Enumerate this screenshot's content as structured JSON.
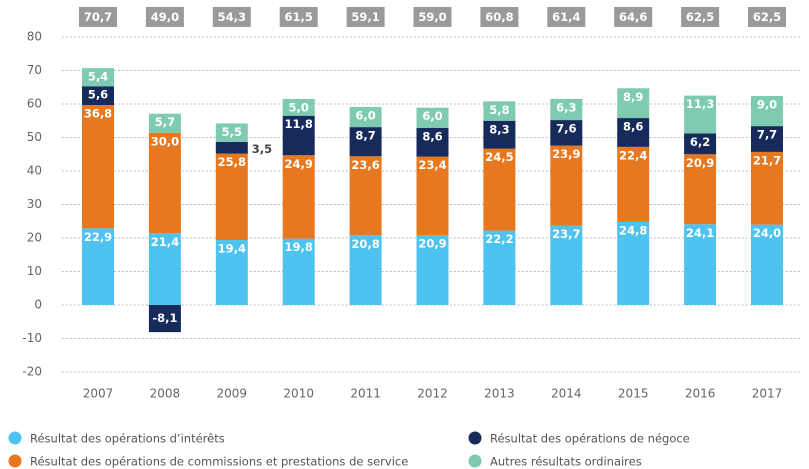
{
  "chart_data": {
    "type": "stacked-bar",
    "categories": [
      "2007",
      "2008",
      "2009",
      "2010",
      "2011",
      "2012",
      "2013",
      "2014",
      "2015",
      "2016",
      "2017"
    ],
    "series": [
      {
        "name": "Résultat des opérations d’intérêts",
        "color": "#4fc3f0",
        "values": [
          22.9,
          21.4,
          19.4,
          19.8,
          20.8,
          20.9,
          22.2,
          23.7,
          24.8,
          24.1,
          24.0
        ],
        "value_labels": [
          "22,9",
          "21,4",
          "19,4",
          "19,8",
          "20,8",
          "20,9",
          "22,2",
          "23,7",
          "24,8",
          "24,1",
          "24,0"
        ]
      },
      {
        "name": "Résultat des opérations de commissions et prestations de service",
        "color": "#e8781f",
        "values": [
          36.8,
          30.0,
          25.8,
          24.9,
          23.6,
          23.4,
          24.5,
          23.9,
          22.4,
          20.9,
          21.7
        ],
        "value_labels": [
          "36,8",
          "30,0",
          "25,8",
          "24,9",
          "23,6",
          "23,4",
          "24,5",
          "23,9",
          "22,4",
          "20,9",
          "21,7"
        ]
      },
      {
        "name": "Résultat des opérations de négoce",
        "color": "#172a5c",
        "values": [
          5.6,
          -8.1,
          3.5,
          11.8,
          8.7,
          8.6,
          8.3,
          7.6,
          8.6,
          6.2,
          7.7
        ],
        "value_labels": [
          "5,6",
          "-8,1",
          "3,5",
          "11,8",
          "8,7",
          "8,6",
          "8,3",
          "7,6",
          "8,6",
          "6,2",
          "7,7"
        ]
      },
      {
        "name": "Autres résultats ordinaires",
        "color": "#7fcbb1",
        "values": [
          5.4,
          5.7,
          5.5,
          5.0,
          6.0,
          6.0,
          5.8,
          6.3,
          8.9,
          11.3,
          9.0
        ],
        "value_labels": [
          "5,4",
          "5,7",
          "5,5",
          "5,0",
          "6,0",
          "6,0",
          "5,8",
          "6,3",
          "8,9",
          "11,3",
          "9,0"
        ]
      }
    ],
    "totals": {
      "values": [
        70.7,
        49.0,
        54.3,
        61.5,
        59.1,
        59.0,
        60.8,
        61.4,
        64.6,
        62.5,
        62.5
      ],
      "value_labels": [
        "70,7",
        "49,0",
        "54,3",
        "61,5",
        "59,1",
        "59,0",
        "60,8",
        "61,4",
        "64,6",
        "62,5",
        "62,5"
      ]
    },
    "ylim": [
      -20,
      80
    ],
    "yticks": [
      -20,
      -10,
      0,
      10,
      20,
      30,
      40,
      50,
      60,
      70,
      80
    ],
    "grid": true
  }
}
